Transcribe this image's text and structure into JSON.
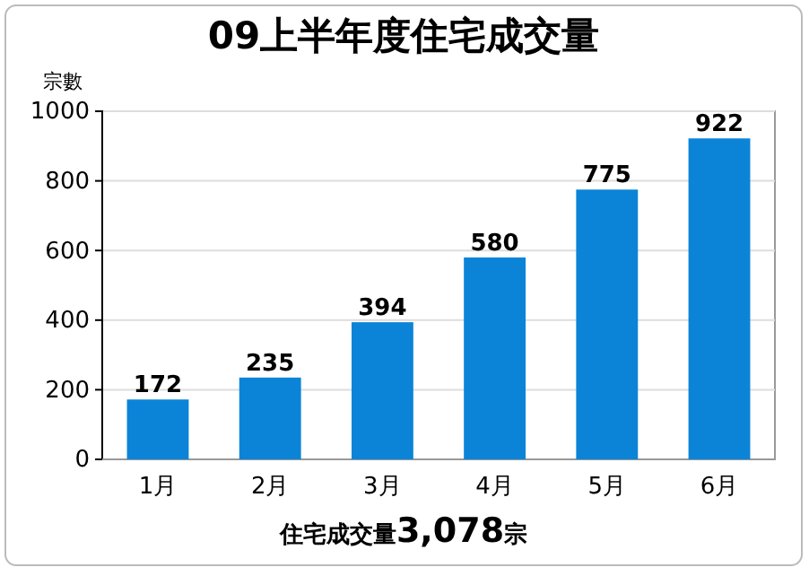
{
  "chart_data": {
    "type": "bar",
    "title": "09上半年度住宅成交量",
    "ylabel": "宗數",
    "categories": [
      "1月",
      "2月",
      "3月",
      "4月",
      "5月",
      "6月"
    ],
    "values": [
      172,
      235,
      394,
      580,
      775,
      922
    ],
    "color": "#0b84d8",
    "ylim": [
      0,
      1000
    ],
    "yticks": [
      0,
      200,
      400,
      600,
      800,
      1000
    ],
    "grid": "y",
    "data_labels": true,
    "annotations": [
      "住宅成交量3,078宗"
    ]
  }
}
